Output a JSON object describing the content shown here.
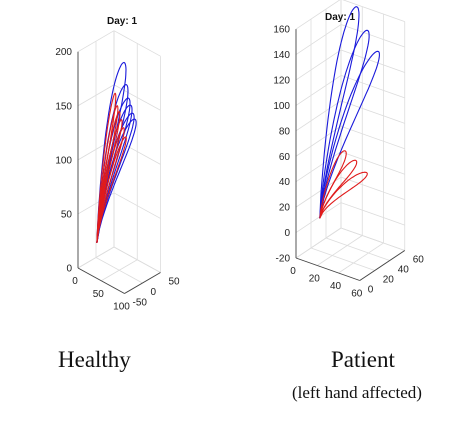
{
  "colors": {
    "blue": "#1a1adb",
    "red": "#e01b1b",
    "grid": "#dcdcdc",
    "axis": "#444444"
  },
  "captions": {
    "left": "Healthy",
    "right": "Patient",
    "right_sub": "(left hand affected)"
  },
  "chart_data": [
    {
      "type": "line",
      "view": "3d",
      "title": "Day: 1",
      "grid": true,
      "xlim": [
        0,
        100
      ],
      "ylim": [
        -50,
        50
      ],
      "zlim": [
        0,
        200
      ],
      "x_ticks": [
        "0",
        "50",
        "100"
      ],
      "y_ticks": [
        "-50",
        "0",
        "50"
      ],
      "z_ticks": [
        "0",
        "50",
        "100",
        "150",
        "200"
      ],
      "series": [
        {
          "color": "blue",
          "peaks": [
            190,
            170,
            158,
            152,
            145,
            140
          ]
        },
        {
          "color": "red",
          "peaks": [
            166,
            155,
            150,
            143,
            136,
            128
          ]
        }
      ]
    },
    {
      "type": "line",
      "view": "3d",
      "title": "Day: 1",
      "grid": true,
      "xlim": [
        0,
        60
      ],
      "ylim": [
        0,
        60
      ],
      "zlim": [
        -20,
        160
      ],
      "x_ticks": [
        "0",
        "20",
        "40",
        "60"
      ],
      "y_ticks": [
        "0",
        "20",
        "40",
        "60"
      ],
      "z_ticks": [
        "-20",
        "0",
        "20",
        "40",
        "60",
        "80",
        "100",
        "120",
        "140",
        "160"
      ],
      "series": [
        {
          "color": "blue",
          "peaks": [
            172,
            155,
            140
          ]
        },
        {
          "color": "red",
          "peaks": [
            64,
            58,
            50
          ]
        }
      ]
    }
  ]
}
